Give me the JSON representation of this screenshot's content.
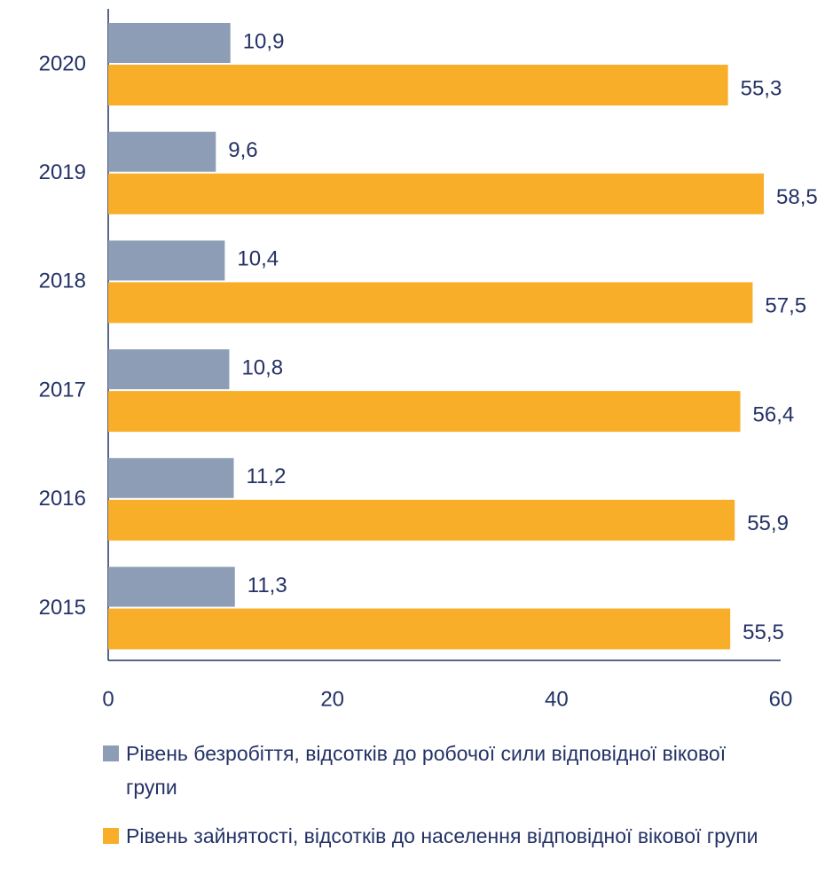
{
  "chart_data": {
    "type": "bar",
    "orientation": "horizontal",
    "categories": [
      "2020",
      "2019",
      "2018",
      "2017",
      "2016",
      "2015"
    ],
    "series": [
      {
        "name": "Рівень безробіття, відсотків до робочої сили відповідної вікової групи",
        "color": "#8c9db5",
        "values": [
          10.9,
          9.6,
          10.4,
          10.8,
          11.2,
          11.3
        ],
        "value_labels": [
          "10,9",
          "9,6",
          "10,4",
          "10,8",
          "11,2",
          "11,3"
        ]
      },
      {
        "name": "Рівень зайнятості, відсотків до населення відповідної вікової групи",
        "color": "#f9ae2a",
        "values": [
          55.3,
          58.5,
          57.5,
          56.4,
          55.9,
          55.5
        ],
        "value_labels": [
          "55,3",
          "58,5",
          "57,5",
          "56,4",
          "55,9",
          "55,5"
        ]
      }
    ],
    "xlim": [
      0,
      60
    ],
    "xticks": [
      0,
      20,
      40,
      60
    ],
    "grid": false,
    "legend": "bottom"
  }
}
